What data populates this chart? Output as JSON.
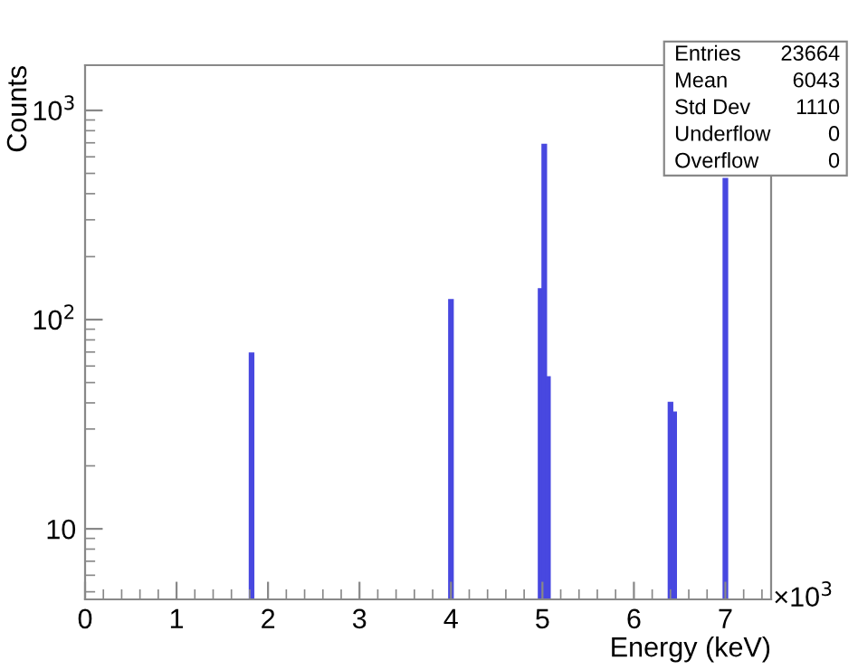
{
  "chart_data": {
    "type": "histogram",
    "xlabel": "Energy (keV)",
    "ylabel": "Counts",
    "log": "y",
    "grid": false,
    "legend": false,
    "color": "#4848e0",
    "bins": [
      1.8,
      1.84,
      3.98,
      4.02,
      4.96,
      5.0,
      5.04,
      5.08,
      6.38,
      6.42,
      6.46,
      6.98,
      7.02
    ],
    "values": [
      69,
      null,
      124,
      null,
      140,
      686,
      53,
      null,
      40,
      36,
      null,
      470
    ],
    "xlim": [
      0,
      7.5
    ],
    "xticks": [
      0,
      1,
      2,
      3,
      4,
      5,
      6,
      7
    ],
    "ylim": [
      4.6,
      1645
    ],
    "yticks": [
      {
        "value": 10,
        "label": "10"
      },
      {
        "value": 100,
        "label": "10$^{2}$"
      },
      {
        "value": 1000,
        "label": "10$^{3}$"
      }
    ],
    "annotations": [
      "×10$^{3}$",
      "Entries",
      "23664",
      "Mean",
      "6043",
      "Std Dev",
      "1110",
      "Underflow",
      "0",
      "Overflow",
      "0"
    ]
  }
}
